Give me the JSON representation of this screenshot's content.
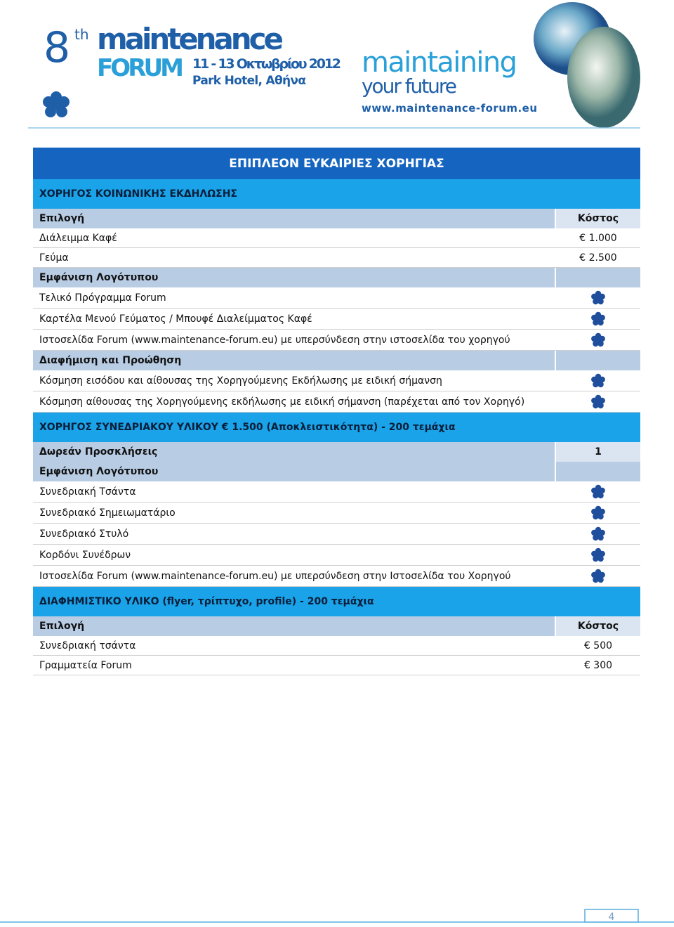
{
  "header": {
    "edition": "8",
    "edition_suffix": "th",
    "brand": "maintenance",
    "brand_sub": "FORUM",
    "dates": "11 - 13 Οκτωβρίου 2012",
    "venue": "Park Hotel, Αθήνα",
    "slogan_1": "maintaining",
    "slogan_2": "your future",
    "url": "www.maintenance-forum.eu"
  },
  "table": {
    "title": "ΕΠΙΠΛΕΟΝ ΕΥΚΑΙΡΙΕΣ ΧΟΡΗΓΙΑΣ",
    "rows": [
      {
        "kind": "section",
        "label": "ΧΟΡΗΓΟΣ ΚΟΙΝΩΝΙΚΗΣ ΕΚΔΗΛΩΣΗΣ"
      },
      {
        "kind": "head",
        "label": "Επιλογή",
        "cost": "Κόστος"
      },
      {
        "kind": "item",
        "label": "Διάλειμμα Καφέ",
        "cost": "€ 1.000"
      },
      {
        "kind": "item",
        "label": "Γεύμα",
        "cost": "€ 2.500"
      },
      {
        "kind": "head",
        "label": "Εμφάνιση Λογότυπου"
      },
      {
        "kind": "item",
        "label": "Τελικό Πρόγραμμα Forum",
        "included": true
      },
      {
        "kind": "item",
        "label": "Καρτέλα Μενού Γεύματος / Μπουφέ Διαλείμματος Καφέ",
        "included": true
      },
      {
        "kind": "item",
        "label": "Ιστοσελίδα Forum (www.maintenance-forum.eu) με υπερσύνδεση στην ιστοσελίδα του χορηγού",
        "included": true
      },
      {
        "kind": "head",
        "label": "Διαφήμιση και Προώθηση"
      },
      {
        "kind": "item",
        "label": "Κόσμηση εισόδου και αίθουσας της Χορηγούμενης Εκδήλωσης με ειδική σήμανση",
        "included": true
      },
      {
        "kind": "item",
        "label": "Κόσμηση αίθουσας της Χορηγούμενης εκδήλωσης με ειδική σήμανση (παρέχεται από τον Χορηγό)",
        "included": true
      },
      {
        "kind": "section",
        "label": "ΧΟΡΗΓΟΣ ΣΥΝΕΔΡΙΑΚΟΥ ΥΛΙΚΟΥ € 1.500 (Αποκλειστικότητα) - 200 τεμάχια"
      },
      {
        "kind": "head",
        "label": "Δωρεάν Προσκλήσεις",
        "cost": "1"
      },
      {
        "kind": "head",
        "label": "Εμφάνιση Λογότυπου"
      },
      {
        "kind": "item",
        "label": "Συνεδριακή Τσάντα",
        "included": true
      },
      {
        "kind": "item",
        "label": "Συνεδριακό Σημειωματάριο",
        "included": true
      },
      {
        "kind": "item",
        "label": "Συνεδριακό Στυλό",
        "included": true
      },
      {
        "kind": "item",
        "label": "Κορδόνι Συνέδρων",
        "included": true
      },
      {
        "kind": "item",
        "label": "Ιστοσελίδα Forum (www.maintenance-forum.eu) με υπερσύνδεση στην Ιστοσελίδα του Χορηγού",
        "included": true
      },
      {
        "kind": "section",
        "label": "ΔΙΑΦΗΜΙΣΤΙΚΟ ΥΛΙΚΟ (flyer, τρίπτυχο, profile) - 200 τεμάχια"
      },
      {
        "kind": "head",
        "label": "Επιλογή",
        "cost": "Κόστος"
      },
      {
        "kind": "item",
        "label": "Συνεδριακή τσάντα",
        "cost": "€ 500"
      },
      {
        "kind": "item",
        "label": "Γραμματεία Forum",
        "cost": "€ 300"
      }
    ]
  },
  "footer": {
    "page": "4"
  }
}
